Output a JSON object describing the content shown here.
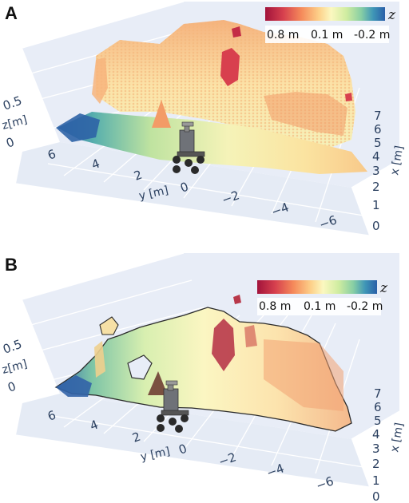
{
  "panels": [
    {
      "letter": "A",
      "kind": "point-cloud",
      "colorbar": {
        "title": "z",
        "ticks": [
          "0.8 m",
          "0.1 m",
          "-0.2 m"
        ]
      },
      "z_axis": {
        "title": "z[m]",
        "ticks": [
          "0.5",
          "0"
        ]
      },
      "y_axis": {
        "title": "y [m]",
        "ticks": [
          "6",
          "4",
          "2",
          "0",
          "−2",
          "−4",
          "−6"
        ]
      },
      "x_axis": {
        "title": "x [m]",
        "ticks": [
          "7",
          "6",
          "5",
          "4",
          "3",
          "2",
          "1",
          "0"
        ]
      }
    },
    {
      "letter": "B",
      "kind": "surface-mesh",
      "colorbar": {
        "title": "z",
        "ticks": [
          "0.8 m",
          "0.1 m",
          "-0.2 m"
        ]
      },
      "z_axis": {
        "title": "z[m]",
        "ticks": [
          "0.5",
          "0"
        ]
      },
      "y_axis": {
        "title": "y [m]",
        "ticks": [
          "6",
          "4",
          "2",
          "0",
          "−2",
          "−4",
          "−6"
        ]
      },
      "x_axis": {
        "title": "x [m]",
        "ticks": [
          "7",
          "6",
          "5",
          "4",
          "3",
          "2",
          "1",
          "0"
        ]
      }
    }
  ],
  "colorscale": [
    "#a2133b",
    "#d6404e",
    "#f5895a",
    "#fdd18a",
    "#fbf8c0",
    "#cfeca0",
    "#88cfa4",
    "#3f96b7",
    "#2a5fa8"
  ]
}
